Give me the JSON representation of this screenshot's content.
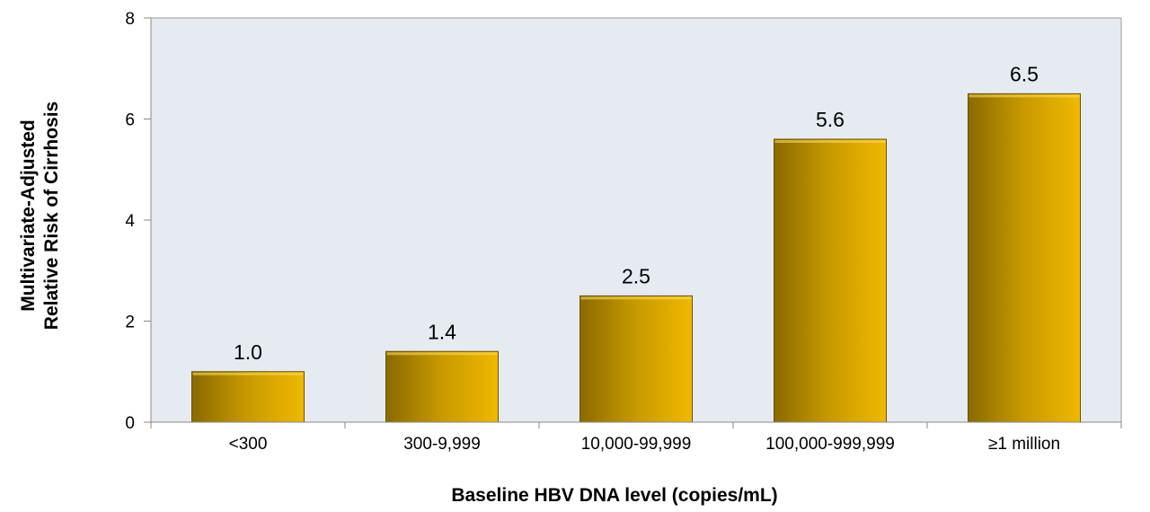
{
  "chart_data": {
    "type": "bar",
    "title": "",
    "categories": [
      "<300",
      "300-9,999",
      "10,000-99,999",
      "100,000-999,999",
      "≥1 million"
    ],
    "values": [
      1.0,
      1.4,
      2.5,
      5.6,
      6.5
    ],
    "data_labels": [
      "1.0",
      "1.4",
      "2.5",
      "5.6",
      "6.5"
    ],
    "xlabel": "Baseline HBV DNA level (copies/mL)",
    "ylabel_lines": [
      "Multivariate-Adjusted",
      "Relative Risk of Cirrhosis"
    ],
    "ylim": [
      0,
      8
    ],
    "yticks": [
      "0",
      "2",
      "4",
      "6",
      "8"
    ],
    "grid": false,
    "legend": "none",
    "colors": {
      "bar_dark": "#8a6a00",
      "bar_light": "#f0b800",
      "plot_bg": "#e6ebf2"
    }
  }
}
